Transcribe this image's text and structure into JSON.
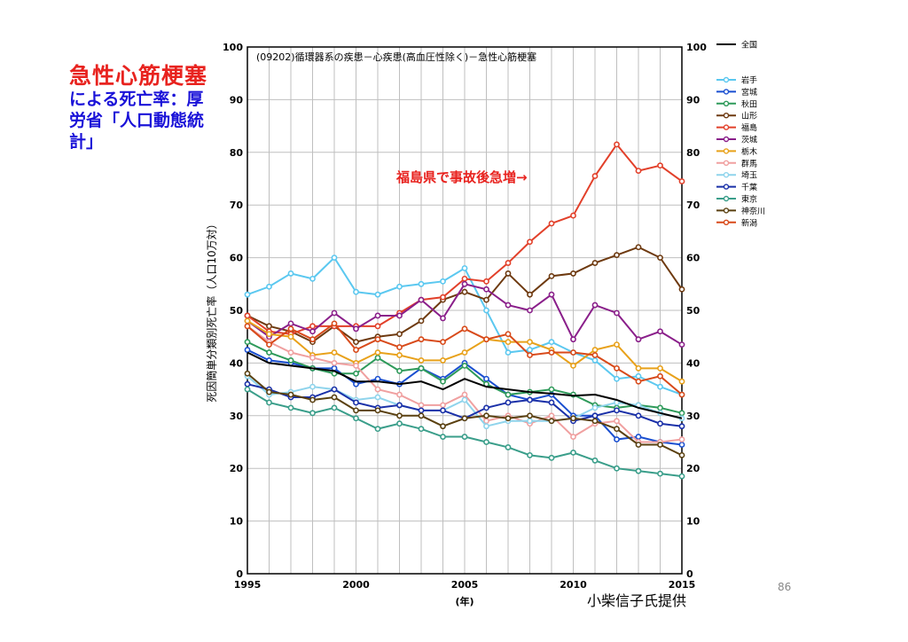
{
  "slide": {
    "heading_line1": "急性心筋梗塞",
    "heading_line2": "による死亡率：厚",
    "heading_line3": "労省「人口動態統",
    "heading_line4": "計」",
    "source": "小柴信子氏提供",
    "page_number": "86"
  },
  "chart_data": {
    "type": "line",
    "title": "(09202)循環器系の疾患－心疾患(高血圧性除く)－急性心筋梗塞",
    "ylabel": "死因簡単分類別死亡率（人口10万対）",
    "xlabel": "(年)",
    "xlim": [
      1995,
      2015
    ],
    "ylim": [
      0,
      100
    ],
    "x_ticks": [
      "1995",
      "2000",
      "2005",
      "2010",
      "2015"
    ],
    "y_ticks": [
      "0",
      "10",
      "20",
      "30",
      "40",
      "50",
      "60",
      "70",
      "80",
      "90",
      "100"
    ],
    "grid": true,
    "legend_position": "right",
    "annotation": "福島県で事故後急増→",
    "x": [
      1995,
      1996,
      1997,
      1998,
      1999,
      2000,
      2001,
      2002,
      2003,
      2004,
      2005,
      2006,
      2007,
      2008,
      2009,
      2010,
      2011,
      2012,
      2013,
      2014,
      2015
    ],
    "series": [
      {
        "name": "全国",
        "color": "#000000",
        "marker": false,
        "values": [
          42.0,
          40.0,
          39.5,
          39.0,
          38.5,
          36.5,
          36.5,
          36.0,
          36.5,
          35.0,
          37.0,
          35.5,
          35.0,
          34.5,
          34.2,
          33.8,
          34.0,
          33.0,
          31.5,
          30.5,
          29.5
        ]
      },
      {
        "name": "岩手",
        "color": "#5bc8f0",
        "marker": true,
        "values": [
          53.0,
          54.5,
          57.0,
          56.0,
          60.0,
          53.5,
          53.0,
          54.5,
          55.0,
          55.5,
          58.0,
          50.0,
          42.0,
          42.5,
          44.0,
          42.0,
          40.5,
          37.0,
          37.5,
          35.5,
          34.0
        ]
      },
      {
        "name": "宮城",
        "color": "#1a4fd0",
        "marker": true,
        "values": [
          42.5,
          40.5,
          40.0,
          39.0,
          39.0,
          36.0,
          37.0,
          36.0,
          39.0,
          37.0,
          40.0,
          37.0,
          34.0,
          33.0,
          34.0,
          30.0,
          30.0,
          25.5,
          26.0,
          25.0,
          24.5
        ]
      },
      {
        "name": "秋田",
        "color": "#2e9a5a",
        "marker": true,
        "values": [
          44.0,
          42.0,
          40.5,
          39.0,
          38.0,
          38.0,
          41.0,
          38.5,
          39.0,
          36.5,
          39.5,
          36.0,
          34.0,
          34.5,
          35.0,
          34.0,
          32.0,
          31.5,
          32.0,
          31.5,
          30.5
        ]
      },
      {
        "name": "山形",
        "color": "#6e3a10",
        "marker": true,
        "values": [
          49.0,
          47.0,
          46.0,
          44.0,
          47.0,
          44.0,
          45.0,
          45.5,
          48.0,
          52.0,
          53.5,
          52.0,
          57.0,
          53.0,
          56.5,
          57.0,
          59.0,
          60.5,
          62.0,
          60.0,
          54.0
        ]
      },
      {
        "name": "福島",
        "color": "#e2402a",
        "marker": true,
        "values": [
          49.0,
          46.0,
          45.5,
          47.0,
          47.0,
          47.0,
          47.0,
          49.5,
          52.0,
          52.5,
          56.0,
          55.5,
          59.0,
          63.0,
          66.5,
          68.0,
          75.5,
          81.5,
          76.5,
          77.5,
          74.5
        ]
      },
      {
        "name": "茨城",
        "color": "#8a1f8a",
        "marker": true,
        "values": [
          48.0,
          45.0,
          47.5,
          46.0,
          49.5,
          46.5,
          49.0,
          49.0,
          52.0,
          48.5,
          55.0,
          54.0,
          51.0,
          50.0,
          53.0,
          44.5,
          51.0,
          49.5,
          44.5,
          46.0,
          43.5
        ]
      },
      {
        "name": "栃木",
        "color": "#e8a11a",
        "marker": true,
        "values": [
          48.0,
          45.5,
          45.0,
          41.5,
          42.0,
          40.0,
          42.0,
          41.5,
          40.5,
          40.5,
          42.0,
          44.5,
          44.0,
          44.0,
          42.5,
          39.5,
          42.5,
          43.5,
          39.0,
          39.0,
          36.5
        ]
      },
      {
        "name": "群馬",
        "color": "#f0a0a0",
        "marker": true,
        "values": [
          47.0,
          44.0,
          42.0,
          41.0,
          40.0,
          39.5,
          35.0,
          34.0,
          32.0,
          32.0,
          34.0,
          29.0,
          30.0,
          28.5,
          30.0,
          26.0,
          28.5,
          29.0,
          25.0,
          25.0,
          25.5
        ]
      },
      {
        "name": "埼玉",
        "color": "#8fd4ec",
        "marker": true,
        "values": [
          37.5,
          34.0,
          34.5,
          35.5,
          35.0,
          33.0,
          33.5,
          32.0,
          31.0,
          31.0,
          33.0,
          28.0,
          29.0,
          29.0,
          29.0,
          29.5,
          31.5,
          32.5,
          32.0,
          30.5,
          29.5
        ]
      },
      {
        "name": "千葉",
        "color": "#1a30a8",
        "marker": true,
        "values": [
          36.0,
          35.0,
          33.5,
          33.5,
          35.0,
          32.5,
          31.5,
          32.0,
          31.0,
          31.0,
          29.5,
          31.5,
          32.5,
          33.0,
          32.5,
          29.0,
          30.0,
          31.0,
          30.0,
          28.5,
          28.0
        ]
      },
      {
        "name": "東京",
        "color": "#3a9e8a",
        "marker": true,
        "values": [
          35.0,
          32.5,
          31.5,
          30.5,
          31.5,
          29.5,
          27.5,
          28.5,
          27.5,
          26.0,
          26.0,
          25.0,
          24.0,
          22.5,
          22.0,
          23.0,
          21.5,
          20.0,
          19.5,
          19.0,
          18.5
        ]
      },
      {
        "name": "神奈川",
        "color": "#5a4010",
        "marker": true,
        "values": [
          38.0,
          34.5,
          34.0,
          33.0,
          33.5,
          31.0,
          31.0,
          30.0,
          30.0,
          28.0,
          29.5,
          30.0,
          29.5,
          30.0,
          29.0,
          29.5,
          29.0,
          27.5,
          24.5,
          24.5,
          22.5
        ]
      },
      {
        "name": "新潟",
        "color": "#d84a1a",
        "marker": true,
        "values": [
          47.0,
          43.5,
          46.5,
          44.5,
          47.5,
          42.5,
          44.5,
          43.0,
          44.5,
          44.0,
          46.5,
          44.5,
          45.5,
          41.5,
          42.0,
          42.0,
          41.5,
          39.0,
          36.5,
          37.5,
          34.0
        ]
      }
    ]
  }
}
